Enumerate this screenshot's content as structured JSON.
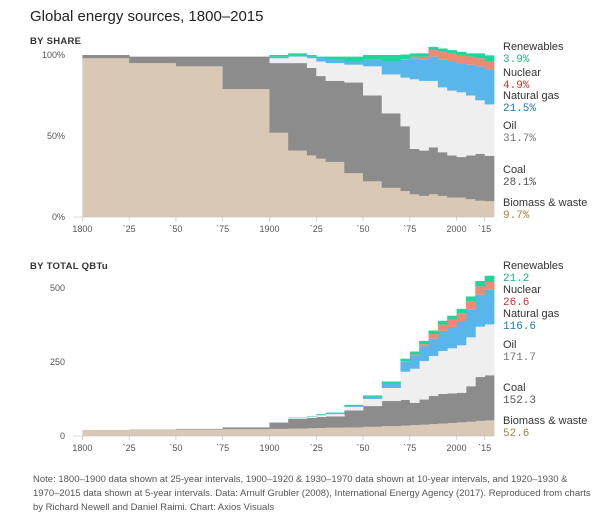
{
  "title": "Global energy sources, 1800–2015",
  "colors": {
    "Biomass & waste": "#d9c8b3",
    "Coal": "#8c8c8c",
    "Oil": "#efefef",
    "Natural gas": "#58b6ea",
    "Nuclear": "#ef8a72",
    "Renewables": "#1fd59b"
  },
  "label_value_colors": {
    "Renewables": "#1fb27a",
    "Nuclear": "#c0392b",
    "Natural gas": "#1f77b4",
    "Oil": "#777777",
    "Coal": "#555555",
    "Biomass & waste": "#b0803a"
  },
  "chart_data": [
    {
      "type": "area",
      "subtitle": "BY SHARE",
      "stacked": true,
      "step": true,
      "x": [
        1800,
        1825,
        1850,
        1875,
        1900,
        1910,
        1920,
        1925,
        1930,
        1940,
        1950,
        1960,
        1970,
        1975,
        1980,
        1985,
        1990,
        1995,
        2000,
        2005,
        2010,
        2015
      ],
      "ylim": [
        0,
        100
      ],
      "yticks": [
        "0%",
        "50%",
        "100%"
      ],
      "xticks": [
        "1800",
        "`25",
        "`50",
        "`75",
        "1900",
        "`25",
        "`50",
        "`75",
        "2000",
        "`15"
      ],
      "series": [
        {
          "name": "Biomass & waste",
          "values": [
            98,
            95,
            93,
            79,
            52,
            41,
            38,
            36,
            34,
            27,
            22,
            18,
            16,
            14,
            13,
            14,
            13,
            12,
            12,
            11,
            10,
            9.7
          ]
        },
        {
          "name": "Coal",
          "values": [
            2,
            4,
            6,
            20,
            43,
            54,
            54,
            51,
            50,
            56,
            53,
            46,
            40,
            28,
            28,
            29,
            27,
            26,
            25,
            27,
            29,
            28.1
          ]
        },
        {
          "name": "Oil",
          "values": [
            0,
            0,
            0,
            0,
            3,
            4,
            6,
            9,
            11,
            11,
            18,
            24,
            30,
            43,
            43,
            41,
            40,
            40,
            40,
            37,
            33,
            31.7
          ]
        },
        {
          "name": "Natural gas",
          "values": [
            0,
            0,
            0,
            0,
            1,
            1,
            1,
            2,
            2,
            2,
            4,
            8,
            11,
            13,
            13,
            15,
            17,
            18,
            18,
            19,
            21,
            21.5
          ]
        },
        {
          "name": "Nuclear",
          "values": [
            0,
            0,
            0,
            0,
            0,
            0,
            0,
            0,
            0,
            0,
            0,
            0,
            0.3,
            1,
            2,
            4,
            5,
            5,
            5,
            5,
            5,
            4.9
          ]
        },
        {
          "name": "Renewables",
          "values": [
            0,
            0,
            0,
            0,
            1,
            1,
            1,
            1,
            2,
            3,
            3,
            4,
            3,
            2,
            2,
            2,
            2,
            2,
            2,
            2,
            3,
            3.9
          ]
        }
      ],
      "end_labels": [
        {
          "name": "Renewables",
          "value": "3.9%"
        },
        {
          "name": "Nuclear",
          "value": "4.9%"
        },
        {
          "name": "Natural gas",
          "value": "21.5%"
        },
        {
          "name": "Oil",
          "value": "31.7%"
        },
        {
          "name": "Coal",
          "value": "28.1%"
        },
        {
          "name": "Biomass & waste",
          "value": "9.7%"
        }
      ]
    },
    {
      "type": "area",
      "subtitle": "BY TOTAL QBTu",
      "stacked": true,
      "step": true,
      "x": [
        1800,
        1825,
        1850,
        1875,
        1900,
        1910,
        1920,
        1925,
        1930,
        1940,
        1950,
        1960,
        1970,
        1975,
        1980,
        1985,
        1990,
        1995,
        2000,
        2005,
        2010,
        2015
      ],
      "ylim": [
        0,
        540
      ],
      "yticks": [
        "0",
        "250",
        "500"
      ],
      "xticks": [
        "1800",
        "`25",
        "`50",
        "`75",
        "1900",
        "`25",
        "`50",
        "`75",
        "2000",
        "`15"
      ],
      "series": [
        {
          "name": "Biomass & waste",
          "values": [
            20,
            21,
            22,
            23,
            24,
            25,
            26,
            27,
            28,
            29,
            31,
            33,
            35,
            37,
            38,
            40,
            42,
            44,
            46,
            48,
            51,
            52.6
          ]
        },
        {
          "name": "Coal",
          "values": [
            0.4,
            1,
            2,
            6,
            21,
            33,
            35,
            37,
            38,
            57,
            70,
            85,
            87,
            75,
            85,
            95,
            100,
            100,
            100,
            120,
            148,
            152.3
          ]
        },
        {
          "name": "Oil",
          "values": [
            0,
            0,
            0,
            0,
            1,
            2,
            4,
            6,
            8,
            12,
            24,
            44,
            95,
            115,
            130,
            135,
            145,
            152,
            160,
            165,
            170,
            171.7
          ]
        },
        {
          "name": "Natural gas",
          "values": [
            0,
            0,
            0,
            0,
            0.5,
            1,
            1,
            2,
            2,
            3,
            7,
            15,
            35,
            45,
            50,
            58,
            68,
            72,
            82,
            95,
            108,
            116.6
          ]
        },
        {
          "name": "Nuclear",
          "values": [
            0,
            0,
            0,
            0,
            0,
            0,
            0,
            0,
            0,
            0,
            0,
            0,
            1,
            3,
            7,
            16,
            21,
            24,
            26,
            27,
            28,
            26.6
          ]
        },
        {
          "name": "Renewables",
          "values": [
            0,
            0,
            0,
            0,
            0.5,
            1,
            1,
            2,
            3,
            4,
            5,
            7,
            8,
            10,
            11,
            12,
            13,
            14,
            15,
            16,
            18,
            21.2
          ]
        }
      ],
      "end_labels": [
        {
          "name": "Renewables",
          "value": "21.2"
        },
        {
          "name": "Nuclear",
          "value": "26.6"
        },
        {
          "name": "Natural gas",
          "value": "116.6"
        },
        {
          "name": "Oil",
          "value": "171.7"
        },
        {
          "name": "Coal",
          "value": "152.3"
        },
        {
          "name": "Biomass & waste",
          "value": "52.6"
        }
      ]
    }
  ],
  "note": "Note: 1800–1900 data shown at 25-year intervals, 1900–1920 & 1930–1970 data shown at 10-year intervals, and 1920–1930 & 1970–2015 data shown at 5-year intervals. Data: Arnulf Grubler (2008), International Energy Agency (2017). Reproduced from charts by Richard Newell and Daniel Raimi. Chart: Axios Visuals"
}
